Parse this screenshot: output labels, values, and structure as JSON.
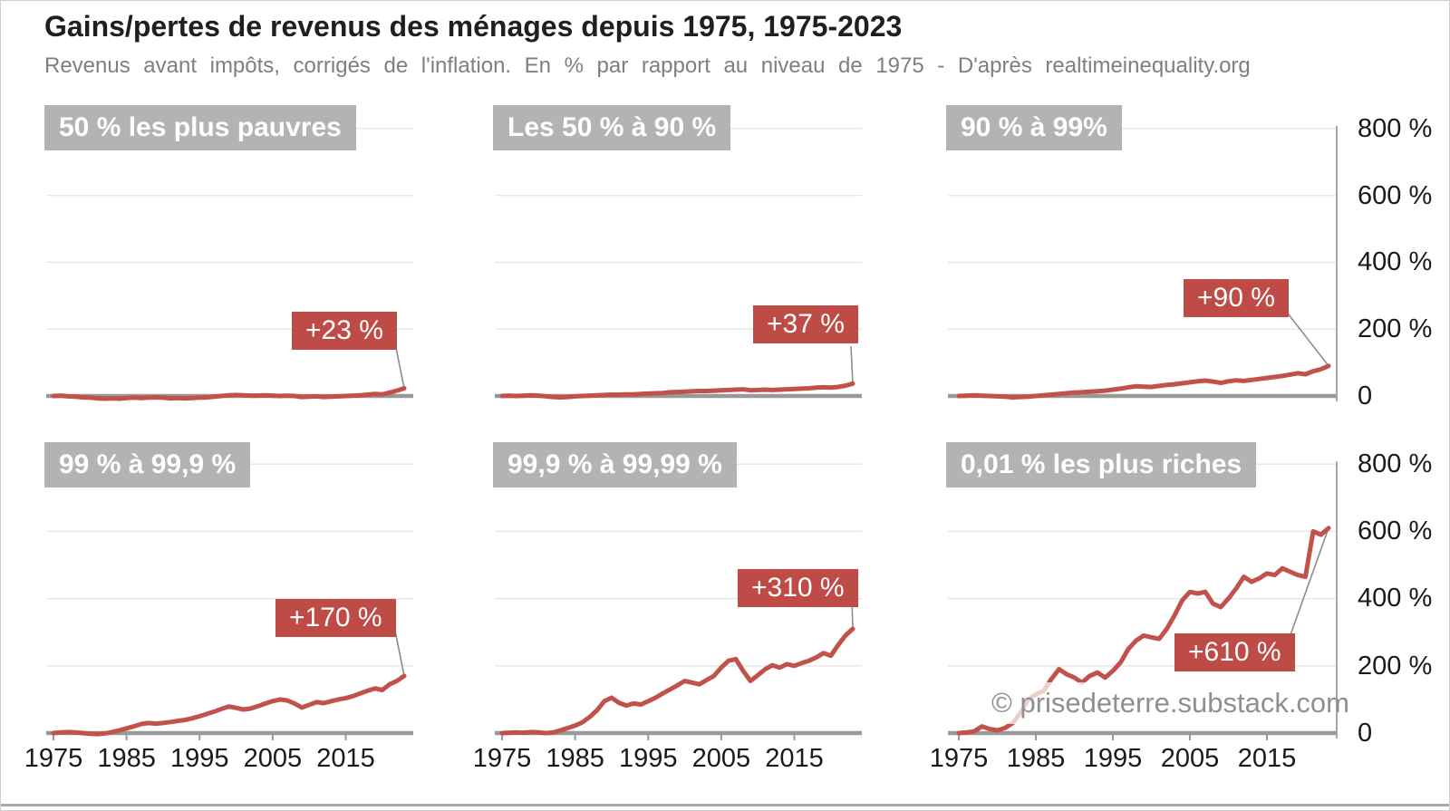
{
  "header": {
    "title": "Gains/pertes de revenus des ménages depuis 1975, 1975-2023",
    "subtitle": "Revenus avant impôts, corrigés de l'inflation. En % par rapport au niveau de 1975 - D'après realtimeinequality.org"
  },
  "watermark": "© prisedeterre.substack.com",
  "colors": {
    "accent_red": "#bf4b47",
    "line_red": "#c0514b",
    "badge_gray": "#b3b3b3",
    "grid": "#e6e6e6",
    "baseline": "#999999",
    "axis_text": "#1a1a1a",
    "subtitle_gray": "#7f7f7f",
    "watermark_gray": "#8f8f8f"
  },
  "axis": {
    "y_ticks": [
      "800 %",
      "600 %",
      "400 %",
      "200 %",
      "0"
    ],
    "y_values": [
      800,
      600,
      400,
      200,
      0
    ],
    "x_ticks": [
      "1975",
      "1985",
      "1995",
      "2005",
      "2015"
    ],
    "x_values": [
      1975,
      1985,
      1995,
      2005,
      2015
    ],
    "x_range": [
      1975,
      2023
    ],
    "ylim": [
      0,
      800
    ]
  },
  "years": [
    1975,
    1976,
    1977,
    1978,
    1979,
    1980,
    1981,
    1982,
    1983,
    1984,
    1985,
    1986,
    1987,
    1988,
    1989,
    1990,
    1991,
    1992,
    1993,
    1994,
    1995,
    1996,
    1997,
    1998,
    1999,
    2000,
    2001,
    2002,
    2003,
    2004,
    2005,
    2006,
    2007,
    2008,
    2009,
    2010,
    2011,
    2012,
    2013,
    2014,
    2015,
    2016,
    2017,
    2018,
    2019,
    2020,
    2021,
    2022,
    2023
  ],
  "chart_data": [
    {
      "type": "line",
      "title": "50 % les plus pauvres",
      "callout": "+23 %",
      "final_value_pct": 23,
      "ylim": [
        0,
        800
      ],
      "grid": true,
      "values": [
        0,
        1,
        -1,
        -2,
        -4,
        -5,
        -7,
        -8,
        -7,
        -8,
        -6,
        -5,
        -6,
        -5,
        -4,
        -5,
        -7,
        -6,
        -7,
        -6,
        -5,
        -4,
        -2,
        0,
        2,
        3,
        2,
        1,
        1,
        2,
        1,
        0,
        1,
        0,
        -3,
        -2,
        -1,
        -3,
        -2,
        -1,
        0,
        1,
        2,
        4,
        6,
        5,
        10,
        16,
        23
      ]
    },
    {
      "type": "line",
      "title": "Les 50 % à 90 %",
      "callout": "+37 %",
      "final_value_pct": 37,
      "ylim": [
        0,
        800
      ],
      "grid": true,
      "values": [
        0,
        1,
        0,
        1,
        2,
        1,
        -1,
        -3,
        -4,
        -3,
        -1,
        0,
        1,
        2,
        3,
        4,
        4,
        5,
        5,
        6,
        7,
        8,
        9,
        11,
        12,
        13,
        14,
        15,
        15,
        16,
        17,
        18,
        19,
        20,
        17,
        18,
        19,
        18,
        19,
        20,
        21,
        22,
        23,
        25,
        26,
        25,
        27,
        31,
        37
      ]
    },
    {
      "type": "line",
      "title": "90 % à 99%",
      "callout": "+90 %",
      "final_value_pct": 90,
      "ylim": [
        0,
        800
      ],
      "grid": true,
      "values": [
        0,
        1,
        2,
        1,
        0,
        -1,
        -2,
        -4,
        -3,
        -2,
        0,
        2,
        4,
        6,
        8,
        10,
        11,
        13,
        14,
        16,
        19,
        22,
        26,
        29,
        28,
        27,
        30,
        33,
        35,
        38,
        41,
        44,
        46,
        43,
        39,
        44,
        47,
        45,
        48,
        51,
        54,
        57,
        60,
        64,
        68,
        65,
        74,
        80,
        90
      ]
    },
    {
      "type": "line",
      "title": "99 % à 99,9 %",
      "callout": "+170 %",
      "final_value_pct": 170,
      "ylim": [
        0,
        800
      ],
      "grid": true,
      "values": [
        0,
        2,
        3,
        2,
        0,
        -2,
        -3,
        -1,
        3,
        8,
        14,
        20,
        27,
        30,
        28,
        30,
        33,
        36,
        39,
        44,
        50,
        57,
        64,
        72,
        79,
        75,
        70,
        73,
        80,
        88,
        95,
        100,
        97,
        88,
        76,
        84,
        92,
        89,
        95,
        100,
        104,
        110,
        118,
        126,
        133,
        128,
        145,
        155,
        170
      ]
    },
    {
      "type": "line",
      "title": "99,9 % à 99,99 %",
      "callout": "+310 %",
      "final_value_pct": 310,
      "ylim": [
        0,
        800
      ],
      "grid": true,
      "values": [
        0,
        1,
        2,
        1,
        3,
        2,
        0,
        2,
        8,
        15,
        22,
        32,
        48,
        68,
        95,
        105,
        90,
        82,
        88,
        85,
        95,
        105,
        118,
        130,
        142,
        155,
        150,
        145,
        158,
        170,
        195,
        215,
        220,
        185,
        155,
        172,
        190,
        202,
        195,
        205,
        200,
        208,
        215,
        225,
        238,
        230,
        262,
        290,
        310
      ]
    },
    {
      "type": "line",
      "title": "0,01 % les plus riches",
      "callout": "+610 %",
      "final_value_pct": 610,
      "ylim": [
        0,
        800
      ],
      "grid": true,
      "values": [
        0,
        2,
        5,
        20,
        12,
        8,
        15,
        30,
        60,
        100,
        115,
        125,
        160,
        190,
        175,
        165,
        150,
        170,
        180,
        165,
        185,
        210,
        250,
        275,
        290,
        285,
        280,
        310,
        350,
        395,
        420,
        415,
        420,
        385,
        375,
        400,
        430,
        465,
        450,
        460,
        475,
        470,
        490,
        480,
        470,
        465,
        600,
        590,
        610
      ]
    }
  ]
}
